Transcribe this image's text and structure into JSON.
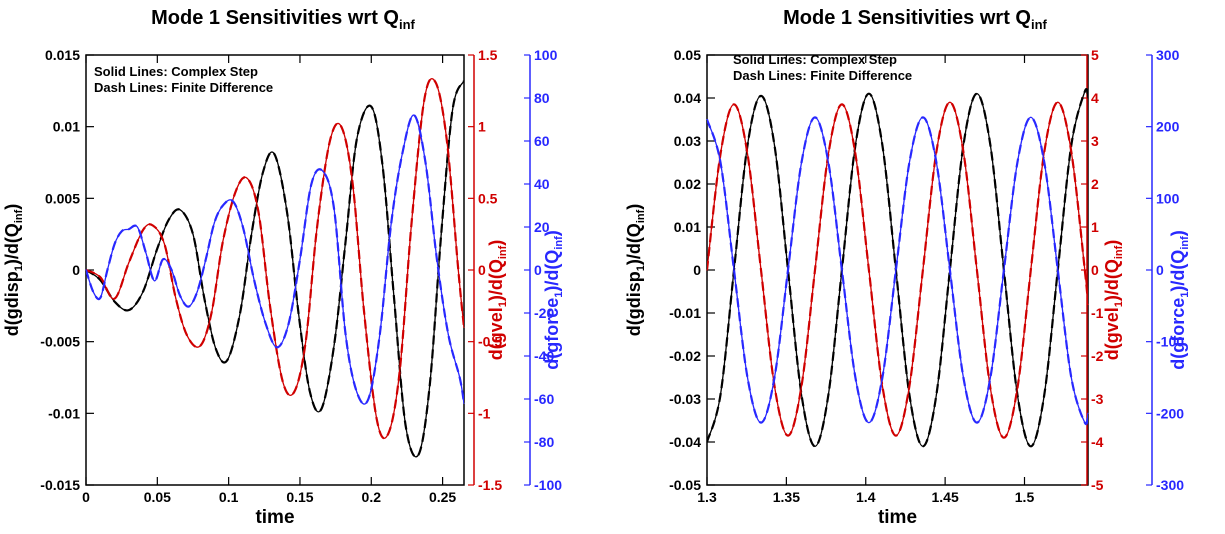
{
  "colors": {
    "disp": "#000000",
    "vel": "#d00000",
    "force": "#2828ff"
  },
  "chart_data": [
    {
      "type": "line",
      "title": "Mode 1 Sensitivities wrt Q",
      "title_sub": "inf",
      "xlabel": "time",
      "ylabel": {
        "pre": "d(gdisp",
        "s1": "1",
        "mid": ")/d(Q",
        "s2": "inf",
        "post": ")"
      },
      "y2label": {
        "pre": "d(gvel",
        "s1": "1",
        "mid": ")/d(Q",
        "s2": "inf",
        "post": ")"
      },
      "y3label": {
        "pre": "d(gforce",
        "s1": "1",
        "mid": ")/d(Q",
        "s2": "inf",
        "post": ")"
      },
      "legend_text": [
        "Solid Lines: Complex Step",
        "Dash Lines: Finite Difference"
      ],
      "xlim": [
        0,
        0.265
      ],
      "ylim": [
        -0.015,
        0.015
      ],
      "y2lim": [
        -1.5,
        1.5
      ],
      "y3lim": [
        -100,
        100
      ],
      "xticks": [
        0,
        0.05,
        0.1,
        0.15,
        0.2,
        0.25
      ],
      "xtick_labels": [
        "0",
        "0.05",
        "0.1",
        "0.15",
        "0.2",
        "0.25"
      ],
      "yticks": [
        -0.015,
        -0.01,
        -0.005,
        0,
        0.005,
        0.01,
        0.015
      ],
      "ytick_labels": [
        "-0.015",
        "-0.01",
        "-0.005",
        "0",
        "0.005",
        "0.01",
        "0.015"
      ],
      "y2ticks": [
        -1.5,
        -1,
        -0.5,
        0,
        0.5,
        1,
        1.5
      ],
      "y2tick_labels": [
        "-1.5",
        "-1",
        "-0.5",
        "0",
        "0.5",
        "1",
        "1.5"
      ],
      "y3ticks": [
        -100,
        -80,
        -60,
        -40,
        -20,
        0,
        20,
        40,
        60,
        80,
        100
      ],
      "y3tick_labels": [
        "-100",
        "-80",
        "-60",
        "-40",
        "-20",
        "0",
        "20",
        "40",
        "60",
        "80",
        "100"
      ],
      "series": [
        {
          "axis": "y",
          "color": "disp",
          "x": [
            0,
            0.01,
            0.02,
            0.03,
            0.04,
            0.05,
            0.058,
            0.066,
            0.075,
            0.083,
            0.091,
            0.099,
            0.108,
            0.116,
            0.124,
            0.132,
            0.141,
            0.149,
            0.157,
            0.165,
            0.174,
            0.182,
            0.19,
            0.2,
            0.208,
            0.216,
            0.224,
            0.233,
            0.241,
            0.249,
            0.257,
            0.265
          ],
          "y": [
            0,
            -0.0007,
            -0.0022,
            -0.0028,
            -0.0015,
            0.0015,
            0.0035,
            0.0042,
            0.0025,
            -0.002,
            -0.0055,
            -0.0063,
            -0.003,
            0.0025,
            0.0068,
            0.0081,
            0.004,
            -0.003,
            -0.0085,
            -0.0097,
            -0.0052,
            0.002,
            0.0092,
            0.0114,
            0.0072,
            -0.002,
            -0.0108,
            -0.0129,
            -0.008,
            0.0025,
            0.0112,
            0.0132
          ]
        },
        {
          "axis": "y2",
          "color": "vel",
          "x": [
            0,
            0.01,
            0.02,
            0.03,
            0.04,
            0.047,
            0.055,
            0.063,
            0.071,
            0.08,
            0.088,
            0.096,
            0.105,
            0.113,
            0.121,
            0.129,
            0.138,
            0.146,
            0.154,
            0.162,
            0.171,
            0.179,
            0.187,
            0.195,
            0.204,
            0.212,
            0.22,
            0.228,
            0.237,
            0.245,
            0.253,
            0.261,
            0.265
          ],
          "y": [
            0,
            -0.05,
            -0.2,
            0.05,
            0.28,
            0.31,
            0.18,
            -0.2,
            -0.46,
            -0.53,
            -0.3,
            0.2,
            0.55,
            0.64,
            0.4,
            -0.25,
            -0.78,
            -0.85,
            -0.5,
            0.3,
            0.9,
            1,
            0.6,
            -0.3,
            -1.05,
            -1.14,
            -0.7,
            0.3,
            1.18,
            1.31,
            0.9,
            0,
            -0.4
          ]
        },
        {
          "axis": "y3",
          "color": "force",
          "x": [
            0,
            0.005,
            0.01,
            0.015,
            0.02,
            0.025,
            0.03,
            0.036,
            0.042,
            0.048,
            0.054,
            0.06,
            0.066,
            0.072,
            0.078,
            0.084,
            0.09,
            0.096,
            0.103,
            0.11,
            0.118,
            0.126,
            0.134,
            0.142,
            0.15,
            0.158,
            0.166,
            0.174,
            0.182,
            0.19,
            0.198,
            0.206,
            0.214,
            0.222,
            0.23,
            0.238,
            0.246,
            0.254,
            0.262,
            0.265
          ],
          "y": [
            0,
            -10,
            -13,
            0,
            12,
            18,
            19,
            20,
            8,
            -5,
            5,
            0,
            -12,
            -17,
            -10,
            5,
            22,
            30,
            32,
            20,
            -5,
            -25,
            -36,
            -25,
            5,
            40,
            46,
            28,
            -30,
            -57,
            -60,
            -30,
            22,
            55,
            72,
            50,
            5,
            -30,
            -50,
            -62
          ]
        }
      ]
    },
    {
      "type": "line",
      "title": "Mode 1 Sensitivities wrt Q",
      "title_sub": "inf",
      "xlabel": "time",
      "ylabel": {
        "pre": "d(gdisp",
        "s1": "1",
        "mid": ")/d(Q",
        "s2": "inf",
        "post": ")"
      },
      "y2label": {
        "pre": "d(gvel",
        "s1": "1",
        "mid": ")/d(Q",
        "s2": "inf",
        "post": ")"
      },
      "y3label": {
        "pre": "d(gforce",
        "s1": "1",
        "mid": ")/d(Q",
        "s2": "inf",
        "post": ")"
      },
      "legend_text": [
        "Solid Lines: Complex Step",
        "Dash Lines: Finite Difference"
      ],
      "xlim": [
        1.3,
        1.54
      ],
      "ylim": [
        -0.05,
        0.05
      ],
      "y2lim": [
        -5,
        5
      ],
      "y3lim": [
        -300,
        300
      ],
      "xticks": [
        1.3,
        1.35,
        1.4,
        1.45,
        1.5
      ],
      "xtick_labels": [
        "1.3",
        "1.35",
        "1.4",
        "1.45",
        "1.5"
      ],
      "yticks": [
        -0.05,
        -0.04,
        -0.03,
        -0.02,
        -0.01,
        0,
        0.01,
        0.02,
        0.03,
        0.04,
        0.05
      ],
      "ytick_labels": [
        "-0.05",
        "-0.04",
        "-0.03",
        "-0.02",
        "-0.01",
        "0",
        "0.01",
        "0.02",
        "0.03",
        "0.04",
        "0.05"
      ],
      "y2ticks": [
        -5,
        -4,
        -3,
        -2,
        -1,
        0,
        1,
        2,
        3,
        4,
        5
      ],
      "y2tick_labels": [
        "-5",
        "-4",
        "-3",
        "-2",
        "-1",
        "0",
        "1",
        "2",
        "3",
        "4",
        "5"
      ],
      "y3ticks": [
        -300,
        -200,
        -100,
        0,
        100,
        200,
        300
      ],
      "y3tick_labels": [
        "-300",
        "-200",
        "-100",
        "0",
        "100",
        "200",
        "300"
      ],
      "series": [
        {
          "axis": "y",
          "color": "disp",
          "x": [
            1.3,
            1.3085,
            1.317,
            1.3255,
            1.334,
            1.3425,
            1.351,
            1.3595,
            1.368,
            1.3765,
            1.385,
            1.3935,
            1.402,
            1.4105,
            1.419,
            1.4275,
            1.436,
            1.4445,
            1.453,
            1.4615,
            1.47,
            1.4785,
            1.487,
            1.4955,
            1.504,
            1.5125,
            1.521,
            1.5295,
            1.538,
            1.54
          ],
          "y": [
            -0.04,
            -0.029,
            0,
            0.029,
            0.0405,
            0.029,
            0,
            -0.029,
            -0.041,
            -0.029,
            0,
            0.029,
            0.041,
            0.029,
            0,
            -0.029,
            -0.041,
            -0.029,
            0,
            0.029,
            0.041,
            0.029,
            0,
            -0.029,
            -0.041,
            -0.029,
            0,
            0.029,
            0.0415,
            0.04
          ]
        },
        {
          "axis": "y2",
          "color": "vel",
          "x": [
            1.3,
            1.3085,
            1.317,
            1.3255,
            1.334,
            1.3425,
            1.351,
            1.3595,
            1.368,
            1.3765,
            1.385,
            1.3935,
            1.402,
            1.4105,
            1.419,
            1.4275,
            1.436,
            1.4445,
            1.453,
            1.4615,
            1.47,
            1.4785,
            1.487,
            1.4955,
            1.504,
            1.5125,
            1.521,
            1.5295,
            1.538,
            1.54
          ],
          "y": [
            0,
            2.7,
            3.85,
            2.7,
            0,
            -2.7,
            -3.85,
            -2.7,
            0,
            2.7,
            3.85,
            2.7,
            0,
            -2.7,
            -3.85,
            -2.7,
            0,
            2.75,
            3.9,
            2.75,
            0,
            -2.75,
            -3.9,
            -2.75,
            0,
            2.75,
            3.9,
            2.75,
            0,
            -0.8
          ]
        },
        {
          "axis": "y3",
          "color": "force",
          "x": [
            1.3,
            1.3085,
            1.317,
            1.3255,
            1.334,
            1.3425,
            1.351,
            1.3595,
            1.368,
            1.3765,
            1.385,
            1.3935,
            1.402,
            1.4105,
            1.419,
            1.4275,
            1.436,
            1.4445,
            1.453,
            1.4615,
            1.47,
            1.4785,
            1.487,
            1.4955,
            1.504,
            1.5125,
            1.521,
            1.5295,
            1.538,
            1.54
          ],
          "y": [
            210,
            150,
            0,
            -150,
            -213,
            -150,
            0,
            150,
            213,
            150,
            0,
            -150,
            -213,
            -150,
            0,
            150,
            213,
            150,
            0,
            -150,
            -213,
            -150,
            0,
            150,
            213,
            150,
            0,
            -150,
            -213,
            -200
          ]
        }
      ]
    }
  ]
}
